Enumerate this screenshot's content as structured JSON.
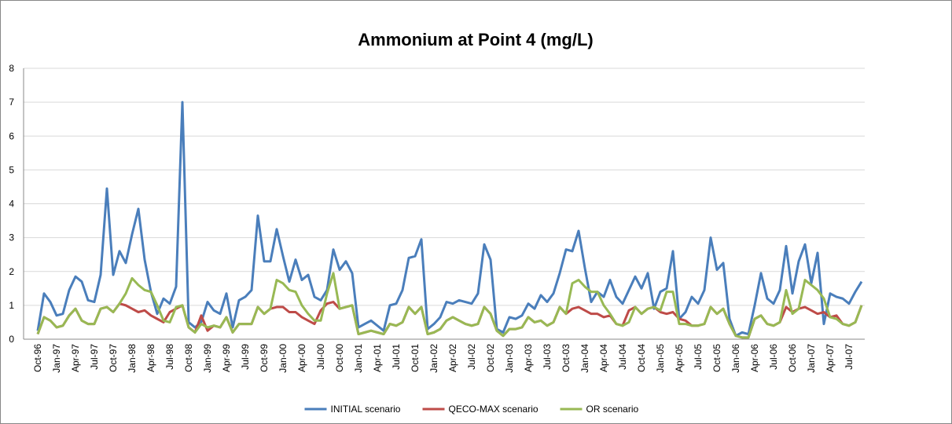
{
  "chart_data": {
    "type": "line",
    "title": "Ammonium at Point 4 (mg/L)",
    "categories": [
      "Oct-96",
      null,
      null,
      "Jan-97",
      null,
      null,
      "Apr-97",
      null,
      null,
      "Jul-97",
      null,
      null,
      "Oct-97",
      null,
      null,
      "Jan-98",
      null,
      null,
      "Apr-98",
      null,
      null,
      "Jul-98",
      null,
      null,
      "Oct-98",
      null,
      null,
      "Jan-99",
      null,
      null,
      "Apr-99",
      null,
      null,
      "Jul-99",
      null,
      null,
      "Oct-99",
      null,
      null,
      "Jan-00",
      null,
      null,
      "Apr-00",
      null,
      null,
      "Jul-00",
      null,
      null,
      "Oct-00",
      null,
      null,
      "Jan-01",
      null,
      null,
      "Apr-01",
      null,
      null,
      "Jul-01",
      null,
      null,
      "Oct-01",
      null,
      null,
      "Jan-02",
      null,
      null,
      "Apr-02",
      null,
      null,
      "Jul-02",
      null,
      null,
      "Oct-02",
      null,
      null,
      "Jan-03",
      null,
      null,
      "Apr-03",
      null,
      null,
      "Jul-03",
      null,
      null,
      "Oct-03",
      null,
      null,
      "Jan-04",
      null,
      null,
      "Apr-04",
      null,
      null,
      "Jul-04",
      null,
      null,
      "Oct-04",
      null,
      null,
      "Jan-05",
      null,
      null,
      "Apr-05",
      null,
      null,
      "Jul-05",
      null,
      null,
      "Oct-05",
      null,
      null,
      "Jan-06",
      null,
      null,
      "Apr-06",
      null,
      null,
      "Jul-06",
      null,
      null,
      "Oct-06",
      null,
      null,
      "Jan-07",
      null,
      null,
      "Apr-07",
      null,
      null,
      "Jul-07",
      null,
      null
    ],
    "series": [
      {
        "name": "INITIAL scenario",
        "color": "#4a7ebb",
        "values": [
          0.25,
          1.35,
          1.1,
          0.7,
          0.75,
          1.45,
          1.85,
          1.7,
          1.15,
          1.1,
          1.9,
          4.45,
          1.9,
          2.6,
          2.25,
          3.1,
          3.85,
          2.35,
          1.4,
          0.75,
          1.2,
          1.05,
          1.55,
          7.0,
          0.5,
          0.35,
          0.5,
          1.1,
          0.85,
          0.75,
          1.35,
          0.35,
          1.15,
          1.25,
          1.45,
          3.65,
          2.3,
          2.3,
          3.25,
          2.45,
          1.7,
          2.35,
          1.75,
          1.9,
          1.25,
          1.15,
          1.45,
          2.65,
          2.05,
          2.3,
          1.95,
          0.35,
          0.45,
          0.55,
          0.4,
          0.25,
          1.0,
          1.05,
          1.45,
          2.4,
          2.45,
          2.95,
          0.3,
          0.45,
          0.65,
          1.1,
          1.05,
          1.15,
          1.1,
          1.05,
          1.35,
          2.8,
          2.35,
          0.3,
          0.2,
          0.65,
          0.6,
          0.7,
          1.05,
          0.9,
          1.3,
          1.1,
          1.35,
          1.95,
          2.65,
          2.6,
          3.2,
          2.1,
          1.1,
          1.4,
          1.25,
          1.75,
          1.25,
          1.05,
          1.45,
          1.85,
          1.5,
          1.95,
          0.9,
          1.4,
          1.5,
          2.6,
          0.6,
          0.8,
          1.25,
          1.05,
          1.45,
          3.0,
          2.05,
          2.25,
          0.6,
          0.1,
          0.2,
          0.15,
          1.0,
          1.95,
          1.2,
          1.05,
          1.45,
          2.75,
          1.35,
          2.3,
          2.8,
          1.65,
          2.55,
          0.45,
          1.35,
          1.25,
          1.2,
          1.05,
          1.4,
          1.7
        ]
      },
      {
        "name": "QECO-MAX scenario",
        "color": "#be4b48",
        "values": [
          0.15,
          0.65,
          0.55,
          0.35,
          0.4,
          0.7,
          0.9,
          0.55,
          0.45,
          0.45,
          0.9,
          0.95,
          0.8,
          1.05,
          1.0,
          0.9,
          0.8,
          0.85,
          0.7,
          0.6,
          0.5,
          0.8,
          0.9,
          1.0,
          0.35,
          0.2,
          0.7,
          0.25,
          0.4,
          0.35,
          0.65,
          0.2,
          0.45,
          0.45,
          0.45,
          0.95,
          0.75,
          0.9,
          0.95,
          0.95,
          0.8,
          0.8,
          0.65,
          0.55,
          0.45,
          0.85,
          1.05,
          1.1,
          0.9,
          0.95,
          1.0,
          0.15,
          0.2,
          0.25,
          0.2,
          0.15,
          0.45,
          0.4,
          0.5,
          0.95,
          0.75,
          0.95,
          0.15,
          0.2,
          0.3,
          0.55,
          0.65,
          0.55,
          0.45,
          0.4,
          0.45,
          0.95,
          0.75,
          0.25,
          0.1,
          0.3,
          0.3,
          0.35,
          0.65,
          0.5,
          0.55,
          0.4,
          0.5,
          0.95,
          0.75,
          0.9,
          0.95,
          0.85,
          0.75,
          0.75,
          0.65,
          0.7,
          0.45,
          0.4,
          0.85,
          0.95,
          0.75,
          0.9,
          0.95,
          0.8,
          0.75,
          0.8,
          0.6,
          0.55,
          0.4,
          0.4,
          0.45,
          0.95,
          0.75,
          0.9,
          0.45,
          0.1,
          0.05,
          0.05,
          0.6,
          0.7,
          0.45,
          0.4,
          0.5,
          0.95,
          0.8,
          0.9,
          0.95,
          0.85,
          0.75,
          0.8,
          0.65,
          0.7,
          0.45,
          0.4,
          0.5,
          1.0
        ]
      },
      {
        "name": "OR scenario",
        "color": "#98b954",
        "values": [
          0.15,
          0.65,
          0.55,
          0.35,
          0.4,
          0.7,
          0.9,
          0.55,
          0.45,
          0.45,
          0.9,
          0.95,
          0.8,
          1.05,
          1.35,
          1.8,
          1.6,
          1.45,
          1.4,
          1.0,
          0.55,
          0.5,
          0.95,
          1.0,
          0.35,
          0.2,
          0.45,
          0.35,
          0.4,
          0.35,
          0.65,
          0.2,
          0.45,
          0.45,
          0.45,
          0.95,
          0.75,
          0.9,
          1.75,
          1.65,
          1.45,
          1.4,
          1.0,
          0.75,
          0.55,
          0.55,
          1.35,
          1.95,
          0.9,
          0.95,
          1.0,
          0.15,
          0.2,
          0.25,
          0.2,
          0.15,
          0.45,
          0.4,
          0.5,
          0.95,
          0.75,
          0.95,
          0.15,
          0.2,
          0.3,
          0.55,
          0.65,
          0.55,
          0.45,
          0.4,
          0.45,
          0.95,
          0.75,
          0.25,
          0.1,
          0.3,
          0.3,
          0.35,
          0.65,
          0.5,
          0.55,
          0.4,
          0.5,
          0.95,
          0.75,
          1.65,
          1.75,
          1.55,
          1.4,
          1.4,
          1.0,
          0.75,
          0.45,
          0.4,
          0.5,
          0.95,
          0.75,
          0.9,
          0.95,
          0.85,
          1.4,
          1.4,
          0.45,
          0.45,
          0.4,
          0.4,
          0.45,
          0.95,
          0.75,
          0.9,
          0.45,
          0.1,
          0.05,
          0.05,
          0.6,
          0.7,
          0.45,
          0.4,
          0.5,
          1.45,
          0.75,
          0.9,
          1.75,
          1.6,
          1.45,
          1.2,
          0.65,
          0.6,
          0.45,
          0.4,
          0.5,
          1.0
        ]
      }
    ],
    "ylim": [
      0,
      8
    ],
    "yticks": [
      0,
      1,
      2,
      3,
      4,
      5,
      6,
      7,
      8
    ],
    "grid": true,
    "legend": "bottom"
  }
}
